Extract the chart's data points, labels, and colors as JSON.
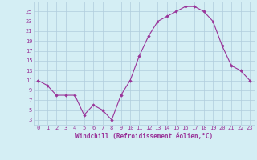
{
  "x": [
    0,
    1,
    2,
    3,
    4,
    5,
    6,
    7,
    8,
    9,
    10,
    11,
    12,
    13,
    14,
    15,
    16,
    17,
    18,
    19,
    20,
    21,
    22,
    23
  ],
  "y": [
    11,
    10,
    8,
    8,
    8,
    4,
    6,
    5,
    3,
    8,
    11,
    16,
    20,
    23,
    24,
    25,
    26,
    26,
    25,
    23,
    18,
    14,
    13,
    11
  ],
  "line_color": "#993399",
  "marker_color": "#993399",
  "bg_color": "#d4eef4",
  "grid_color": "#b0ccdd",
  "xlabel": "Windchill (Refroidissement éolien,°C)",
  "xlabel_color": "#993399",
  "xlabel_fontsize": 5.5,
  "tick_color": "#993399",
  "tick_fontsize": 5.0,
  "ylim": [
    2,
    27
  ],
  "yticks": [
    3,
    5,
    7,
    9,
    11,
    13,
    15,
    17,
    19,
    21,
    23,
    25
  ],
  "xlim": [
    -0.5,
    23.5
  ]
}
